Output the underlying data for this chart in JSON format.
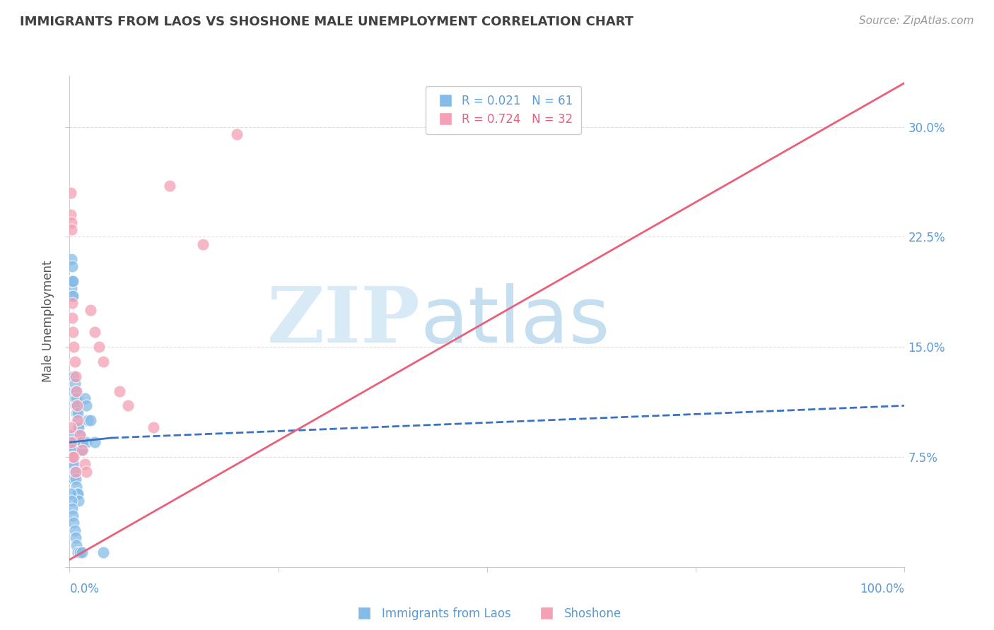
{
  "title": "IMMIGRANTS FROM LAOS VS SHOSHONE MALE UNEMPLOYMENT CORRELATION CHART",
  "source": "Source: ZipAtlas.com",
  "ylabel": "Male Unemployment",
  "yticks": [
    0.0,
    0.075,
    0.15,
    0.225,
    0.3
  ],
  "ytick_labels": [
    "",
    "7.5%",
    "15.0%",
    "22.5%",
    "30.0%"
  ],
  "xlim": [
    0.0,
    1.0
  ],
  "ylim": [
    0.0,
    0.335
  ],
  "blue_R": 0.021,
  "blue_N": 61,
  "pink_R": 0.724,
  "pink_N": 32,
  "blue_color": "#85BBE8",
  "pink_color": "#F4A0B5",
  "blue_line_color": "#3A72C4",
  "pink_line_color": "#E8607A",
  "blue_label": "Immigrants from Laos",
  "pink_label": "Shoshone",
  "grid_color": "#DDDDDD",
  "axis_color": "#CCCCCC",
  "tick_color": "#5B9BD5",
  "title_color": "#404040",
  "ylabel_color": "#555555",
  "blue_scatter_x": [
    0.001,
    0.002,
    0.002,
    0.003,
    0.003,
    0.003,
    0.004,
    0.004,
    0.005,
    0.005,
    0.006,
    0.006,
    0.007,
    0.007,
    0.008,
    0.008,
    0.009,
    0.009,
    0.01,
    0.01,
    0.011,
    0.012,
    0.013,
    0.014,
    0.015,
    0.016,
    0.018,
    0.02,
    0.022,
    0.025,
    0.001,
    0.001,
    0.002,
    0.002,
    0.003,
    0.003,
    0.004,
    0.004,
    0.005,
    0.005,
    0.006,
    0.007,
    0.008,
    0.009,
    0.01,
    0.011,
    0.015,
    0.02,
    0.03,
    0.04,
    0.001,
    0.002,
    0.003,
    0.004,
    0.005,
    0.006,
    0.007,
    0.008,
    0.01,
    0.012,
    0.015
  ],
  "blue_scatter_y": [
    0.195,
    0.21,
    0.19,
    0.205,
    0.195,
    0.185,
    0.195,
    0.185,
    0.13,
    0.12,
    0.125,
    0.115,
    0.12,
    0.11,
    0.115,
    0.105,
    0.11,
    0.1,
    0.105,
    0.095,
    0.095,
    0.09,
    0.085,
    0.08,
    0.085,
    0.08,
    0.115,
    0.11,
    0.1,
    0.1,
    0.09,
    0.08,
    0.085,
    0.075,
    0.08,
    0.07,
    0.075,
    0.065,
    0.07,
    0.06,
    0.065,
    0.06,
    0.055,
    0.05,
    0.05,
    0.045,
    0.085,
    0.085,
    0.085,
    0.01,
    0.05,
    0.045,
    0.04,
    0.035,
    0.03,
    0.025,
    0.02,
    0.015,
    0.01,
    0.01,
    0.01
  ],
  "pink_scatter_x": [
    0.001,
    0.001,
    0.002,
    0.002,
    0.003,
    0.003,
    0.004,
    0.005,
    0.006,
    0.007,
    0.008,
    0.009,
    0.01,
    0.012,
    0.015,
    0.018,
    0.02,
    0.025,
    0.03,
    0.035,
    0.04,
    0.06,
    0.07,
    0.1,
    0.12,
    0.16,
    0.2,
    0.001,
    0.002,
    0.003,
    0.005,
    0.007
  ],
  "pink_scatter_y": [
    0.255,
    0.24,
    0.235,
    0.23,
    0.18,
    0.17,
    0.16,
    0.15,
    0.14,
    0.13,
    0.12,
    0.11,
    0.1,
    0.09,
    0.08,
    0.07,
    0.065,
    0.175,
    0.16,
    0.15,
    0.14,
    0.12,
    0.11,
    0.095,
    0.26,
    0.22,
    0.295,
    0.095,
    0.085,
    0.075,
    0.075,
    0.065
  ],
  "blue_trend_x": [
    0.0,
    0.05,
    1.0
  ],
  "blue_trend_y": [
    0.085,
    0.088,
    0.11
  ],
  "pink_trend_x": [
    0.0,
    1.0
  ],
  "pink_trend_y": [
    0.005,
    0.33
  ]
}
